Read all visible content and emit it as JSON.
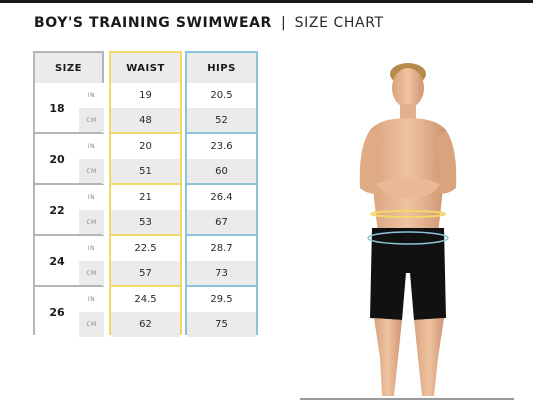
{
  "title": {
    "main": "BOY'S TRAINING SWIMWEAR",
    "separator": "|",
    "sub": "SIZE CHART"
  },
  "table": {
    "headers": {
      "size": "SIZE",
      "waist": "WAIST",
      "hips": "HIPS"
    },
    "unit_in": "IN",
    "unit_cm": "CM",
    "rows": [
      {
        "size": "18",
        "waist_in": "19",
        "waist_cm": "48",
        "hips_in": "20.5",
        "hips_cm": "52"
      },
      {
        "size": "20",
        "waist_in": "20",
        "waist_cm": "51",
        "hips_in": "23.6",
        "hips_cm": "60"
      },
      {
        "size": "22",
        "waist_in": "21",
        "waist_cm": "53",
        "hips_in": "26.4",
        "hips_cm": "67"
      },
      {
        "size": "24",
        "waist_in": "22.5",
        "waist_cm": "57",
        "hips_in": "28.7",
        "hips_cm": "73"
      },
      {
        "size": "26",
        "waist_in": "24.5",
        "waist_cm": "62",
        "hips_in": "29.5",
        "hips_cm": "75"
      }
    ]
  },
  "colors": {
    "waist_accent": "#f2d86a",
    "hips_accent": "#8cc3d9",
    "size_border": "#b5b5b5",
    "shaded_cell": "#ebebeb"
  },
  "photo": {
    "icon": "boy-model-photo",
    "waist_marker_color": "#f2d86a",
    "hips_marker_color": "#8cc3d9"
  }
}
